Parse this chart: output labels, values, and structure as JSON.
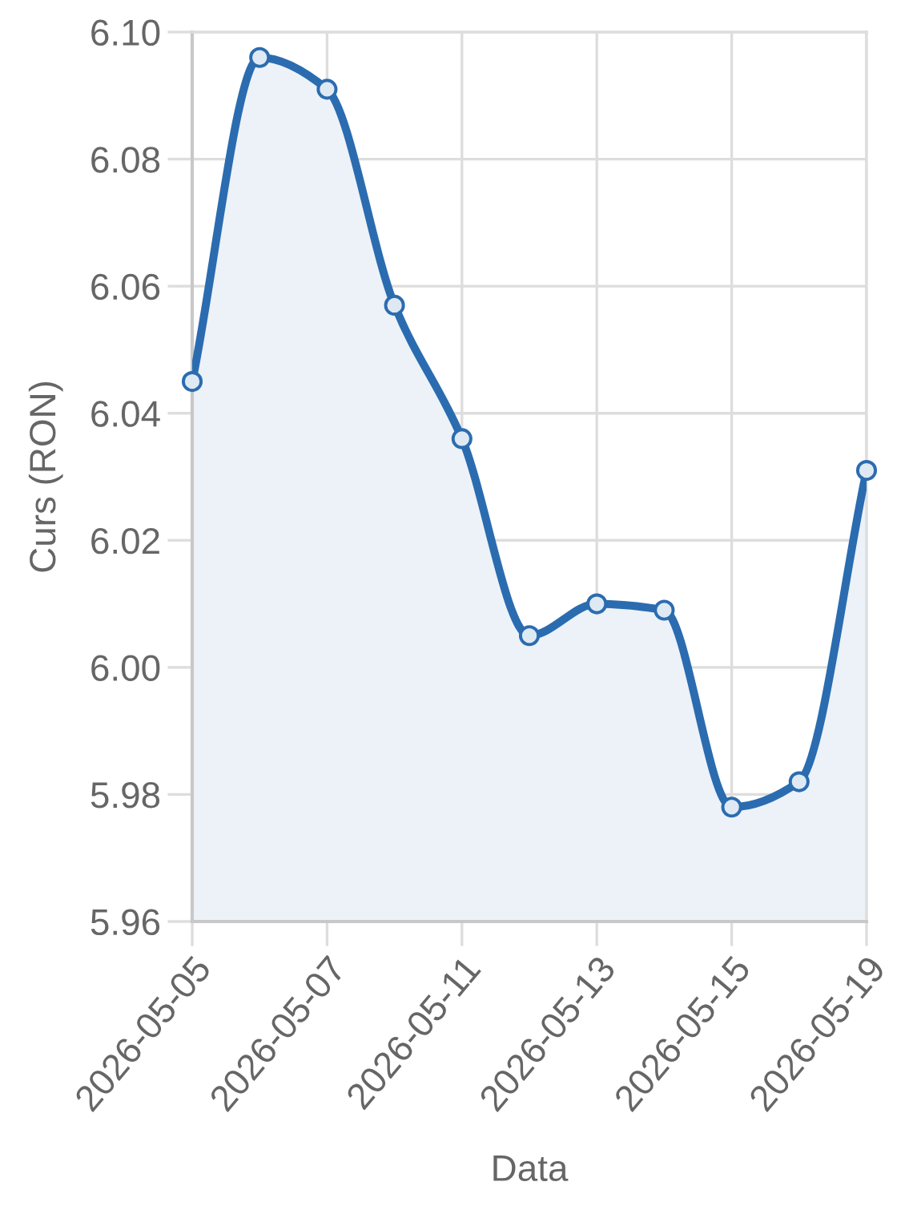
{
  "chart_data": {
    "type": "area",
    "xlabel": "Data",
    "ylabel": "Curs (RON)",
    "categories": [
      "2026-05-05",
      null,
      "2026-05-07",
      null,
      "2026-05-11",
      null,
      "2026-05-13",
      null,
      "2026-05-15",
      null,
      "2026-05-19"
    ],
    "series": [
      {
        "color": "#2b6cb0",
        "values": [
          6.045,
          6.096,
          6.091,
          6.057,
          6.036,
          6.005,
          6.01,
          6.009,
          5.978,
          5.982,
          6.031
        ]
      }
    ],
    "ylim": [
      5.96,
      6.1
    ],
    "yticks": [
      5.96,
      5.98,
      {
        "value": 6.0,
        "label": "6.00"
      },
      6.02,
      6.04,
      6.06,
      6.08,
      {
        "value": 6.1,
        "label": "6.10"
      }
    ],
    "grid": true,
    "marker": "circle",
    "line_style": "solid"
  }
}
